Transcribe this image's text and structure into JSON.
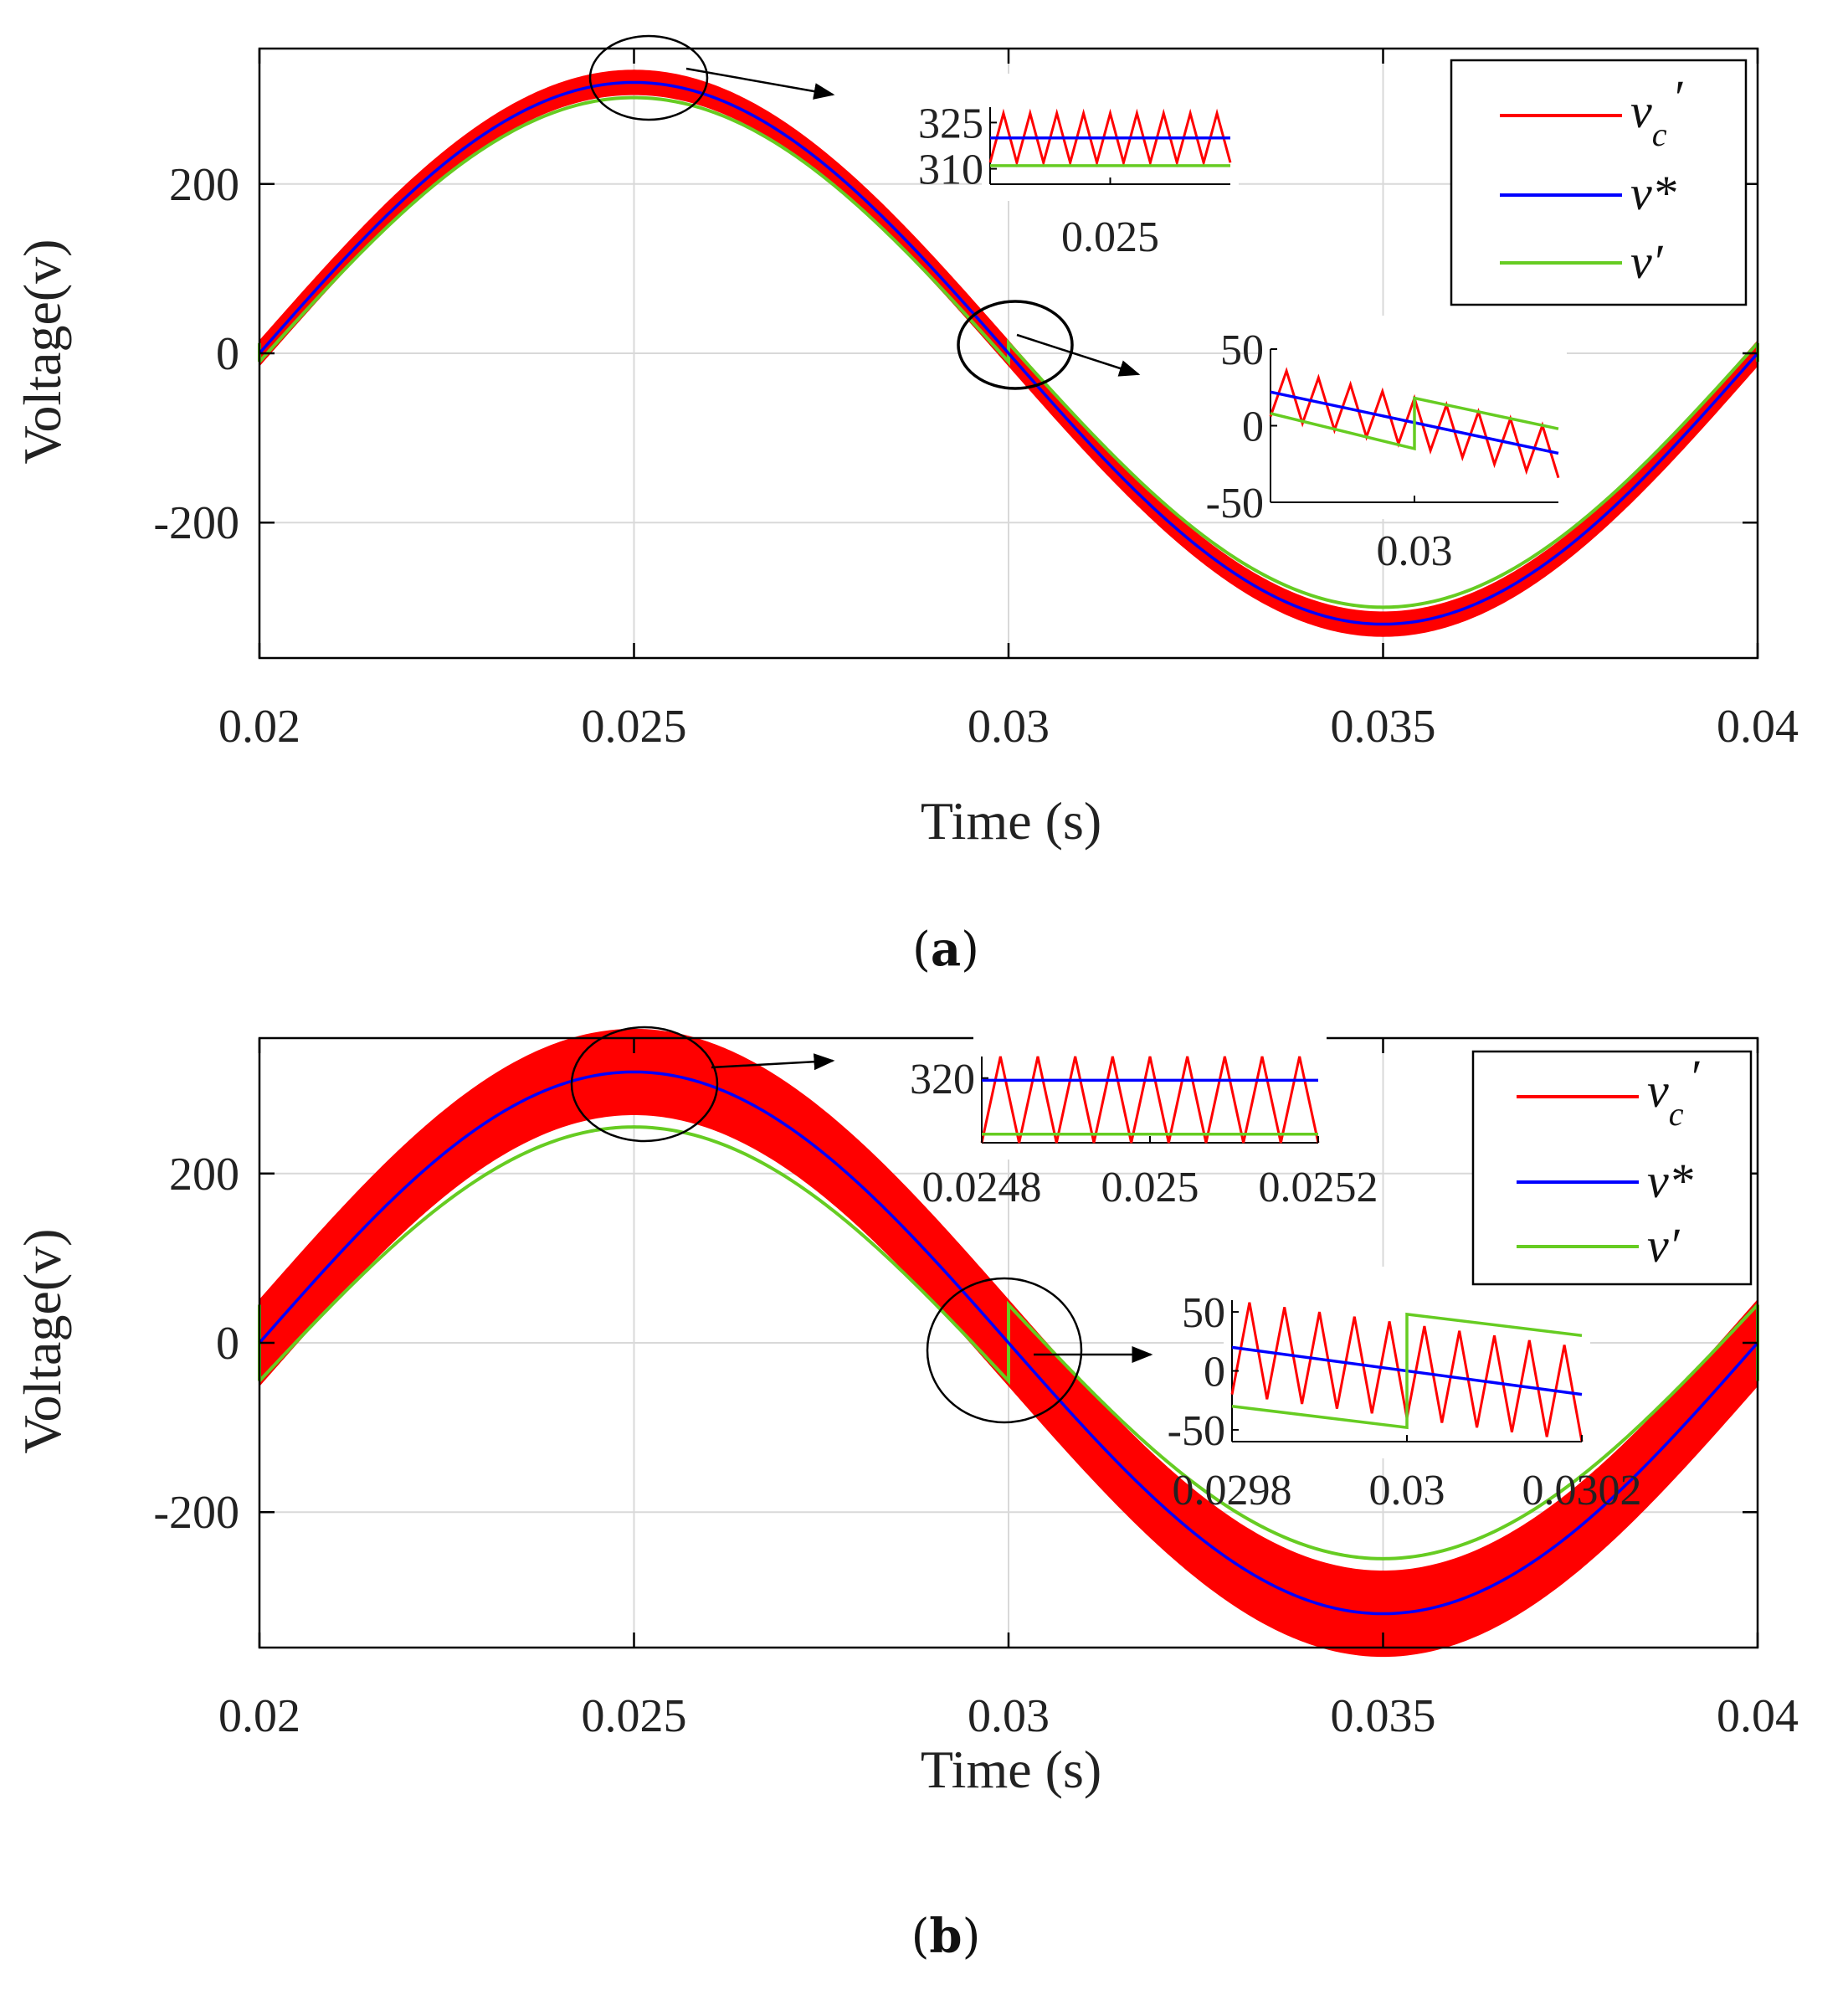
{
  "chart_data": [
    {
      "type": "line",
      "panel": "(a)",
      "caption_letter": "a",
      "xlabel": "Time (s)",
      "ylabel": "Voltage(v)",
      "xlim": [
        0.02,
        0.04
      ],
      "ylim": [
        -360,
        360
      ],
      "xticks": [
        0.02,
        0.025,
        0.03,
        0.035,
        0.04
      ],
      "xtick_labels": [
        "0.02",
        "0.025",
        "0.03",
        "0.035",
        "0.04"
      ],
      "yticks": [
        200,
        0,
        -200
      ],
      "ytick_labels": [
        "200",
        "0",
        "-200"
      ],
      "grid": true,
      "legend_position": "top-right",
      "series": [
        {
          "name": "v_c'",
          "color": "#ff0000",
          "amplitude": 320,
          "offset": 0,
          "band": 14
        },
        {
          "name": "v*",
          "color": "#0000ff",
          "amplitude": 320,
          "offset": 0
        },
        {
          "name": "v'",
          "color": "#66cc22",
          "amplitude": 312,
          "offset": -10,
          "jump_at": 0.03,
          "jump": 22
        }
      ],
      "legend": [
        {
          "base": "v",
          "sub": "c",
          "prime": "′",
          "color": "#ff0000"
        },
        {
          "base": "v*",
          "sub": "",
          "prime": "",
          "color": "#0000ff"
        },
        {
          "base": "v′",
          "sub": "",
          "prime": "",
          "color": "#66cc22"
        }
      ],
      "insets": [
        {
          "name": "peak-zoom",
          "xlim": [
            0.0249,
            0.0251
          ],
          "ylim": [
            305,
            330
          ],
          "xticks": [
            0.025
          ],
          "xtick_labels": [
            "0.025"
          ],
          "yticks": [
            325,
            310
          ],
          "ytick_labels": [
            "325",
            "310"
          ],
          "red": {
            "center": 320,
            "swing": 8,
            "teeth": 9
          },
          "blue": 320,
          "green": 311
        },
        {
          "name": "zero-crossing-zoom",
          "xlim": [
            0.0298,
            0.0302
          ],
          "ylim": [
            -50,
            50
          ],
          "xticks": [
            0.03
          ],
          "xtick_labels": [
            "0.03"
          ],
          "yticks": [
            50,
            0,
            -50
          ],
          "ytick_labels": [
            "50",
            "0",
            "-50"
          ],
          "red": {
            "center_start": 22,
            "center_end": -18,
            "swing": 16,
            "teeth": 9
          },
          "blue": [
            22,
            -18
          ],
          "green": {
            "start": 8,
            "before_jump": -15,
            "jump_at": 0.03,
            "after_jump": 18,
            "end": -2
          }
        }
      ]
    },
    {
      "type": "line",
      "panel": "(b)",
      "caption_letter": "b",
      "xlabel": "Time (s)",
      "ylabel": "Voltage(v)",
      "xlim": [
        0.02,
        0.04
      ],
      "ylim": [
        -360,
        360
      ],
      "xticks": [
        0.02,
        0.025,
        0.03,
        0.035,
        0.04
      ],
      "xtick_labels": [
        "0.02",
        "0.025",
        "0.03",
        "0.035",
        "0.04"
      ],
      "yticks": [
        200,
        0,
        -200
      ],
      "ytick_labels": [
        "200",
        "0",
        "-200"
      ],
      "grid": true,
      "legend_position": "top-right",
      "series": [
        {
          "name": "v_c'",
          "color": "#ff0000",
          "amplitude": 320,
          "offset": 0,
          "band": 50
        },
        {
          "name": "v*",
          "color": "#0000ff",
          "amplitude": 320,
          "offset": 0
        },
        {
          "name": "v'",
          "color": "#66cc22",
          "amplitude": 300,
          "offset": -45,
          "jump_at": 0.03,
          "jump": 90
        }
      ],
      "legend": [
        {
          "base": "v",
          "sub": "c",
          "prime": "′",
          "color": "#ff0000"
        },
        {
          "base": "v*",
          "sub": "",
          "prime": "",
          "color": "#0000ff"
        },
        {
          "base": "v′",
          "sub": "",
          "prime": "",
          "color": "#66cc22"
        }
      ],
      "insets": [
        {
          "name": "peak-zoom",
          "xlim": [
            0.0248,
            0.0252
          ],
          "ylim": [
            290,
            330
          ],
          "xticks": [
            0.0248,
            0.025,
            0.0252
          ],
          "xtick_labels": [
            "0.0248",
            "0.025",
            "0.0252"
          ],
          "yticks": [
            320
          ],
          "ytick_labels": [
            "320"
          ],
          "red": {
            "center": 310,
            "swing": 20,
            "teeth": 9
          },
          "blue": 319,
          "green": 294
        },
        {
          "name": "zero-crossing-zoom",
          "xlim": [
            0.0298,
            0.0302
          ],
          "ylim": [
            -60,
            60
          ],
          "xticks": [
            0.0298,
            0.03,
            0.0302
          ],
          "xtick_labels": [
            "0.0298",
            "0.03",
            "0.0302"
          ],
          "yticks": [
            50,
            0,
            -50
          ],
          "ytick_labels": [
            "50",
            "0",
            "-50"
          ],
          "red": {
            "center_start": 20,
            "center_end": -20,
            "swing": 40,
            "teeth": 10
          },
          "blue": [
            20,
            -20
          ],
          "green": {
            "start": -30,
            "before_jump": -48,
            "jump_at": 0.03,
            "after_jump": 48,
            "end": 30
          }
        }
      ]
    }
  ]
}
